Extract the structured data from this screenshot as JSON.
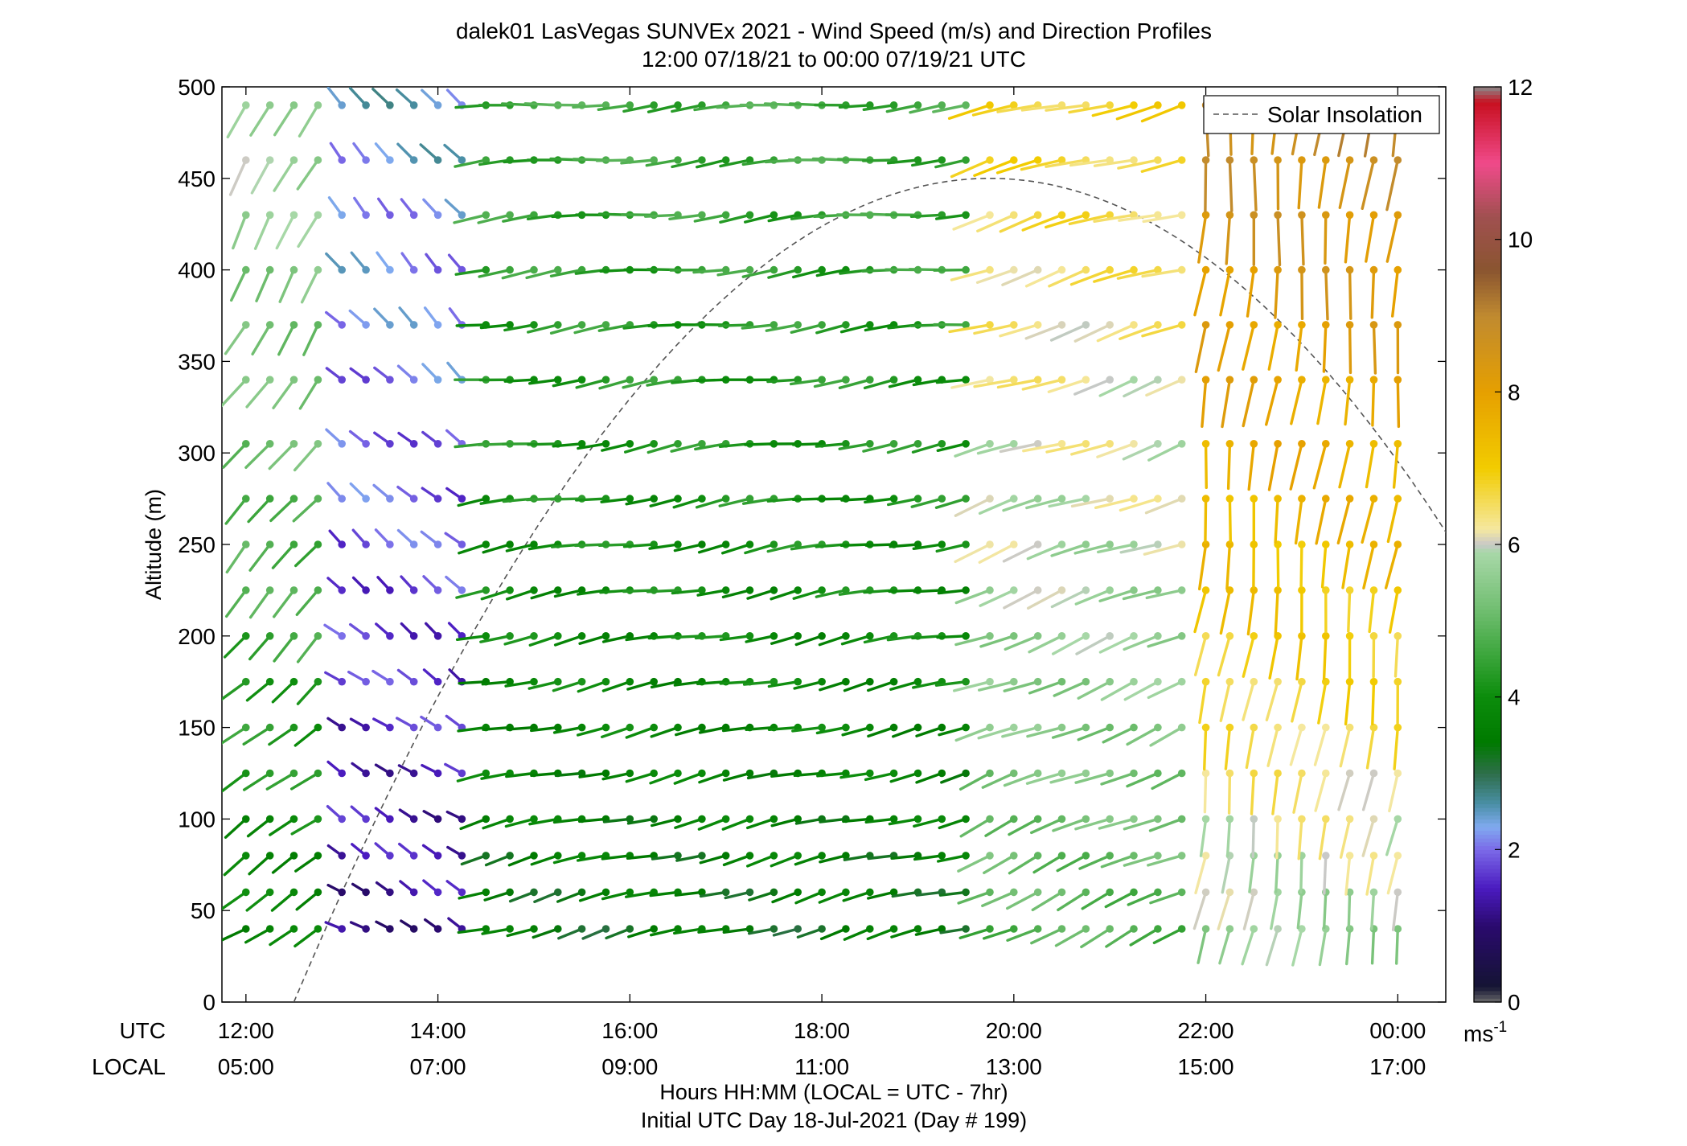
{
  "chart_data": {
    "type": "wind-barb-profile",
    "title_line1": "dalek01 LasVegas SUNVEx 2021 - Wind Speed (m/s) and Direction Profiles",
    "title_line2": "12:00 07/18/21 to 00:00 07/19/21  UTC",
    "ylabel": "Altitude (m)",
    "xlabel_line1": "Hours HH:MM  (LOCAL = UTC - 7hr)",
    "xlabel_line2": "Initial UTC Day 18-Jul-2021 (Day # 199)",
    "row_labels": {
      "utc": "UTC",
      "local": "LOCAL"
    },
    "ylim": [
      0,
      500
    ],
    "yticks": [
      0,
      50,
      100,
      150,
      200,
      250,
      300,
      350,
      400,
      450,
      500
    ],
    "xlim_hours": [
      11.75,
      24.5
    ],
    "xticks": [
      {
        "hour": 12,
        "utc": "12:00",
        "local": "05:00"
      },
      {
        "hour": 14,
        "utc": "14:00",
        "local": "07:00"
      },
      {
        "hour": 16,
        "utc": "16:00",
        "local": "09:00"
      },
      {
        "hour": 18,
        "utc": "18:00",
        "local": "11:00"
      },
      {
        "hour": 20,
        "utc": "20:00",
        "local": "13:00"
      },
      {
        "hour": 22,
        "utc": "22:00",
        "local": "15:00"
      },
      {
        "hour": 24,
        "utc": "00:00",
        "local": "17:00"
      }
    ],
    "colorbar": {
      "min": 0,
      "max": 12,
      "ticks": [
        0,
        2,
        4,
        6,
        8,
        10,
        12
      ],
      "unit_base": "ms",
      "unit_exp": "-1"
    },
    "legend": {
      "label": "Solar Insolation",
      "position": "top-right",
      "style": "dashed"
    },
    "solar_insolation": {
      "start_hour": 12.5,
      "peak_hour": 19.75,
      "peak_altitude": 450,
      "end_hour": 27.0
    },
    "altitudes": [
      40,
      60,
      80,
      100,
      125,
      150,
      175,
      200,
      225,
      250,
      275,
      305,
      340,
      370,
      400,
      430,
      460,
      490
    ],
    "sample_interval_hours": 0.25,
    "profile_segments": [
      {
        "from_hour": 12.0,
        "to_hour": 13.0,
        "speed_low": 3.6,
        "speed_high": 5.8,
        "dir_low": 240,
        "dir_high": 205
      },
      {
        "from_hour": 13.0,
        "to_hour": 14.5,
        "speed_low": 1.2,
        "speed_high": 2.4,
        "dir_low": 300,
        "dir_high": 320
      },
      {
        "from_hour": 14.5,
        "to_hour": 19.75,
        "speed_low": 3.4,
        "speed_high": 4.6,
        "dir_low": 255,
        "dir_high": 265
      },
      {
        "from_hour": 19.75,
        "to_hour": 22.0,
        "speed_low": 4.8,
        "speed_high": 6.8,
        "dir_low": 245,
        "dir_high": 255
      },
      {
        "from_hour": 22.0,
        "to_hour": 24.0,
        "speed_low": 5.6,
        "speed_high": 8.8,
        "dir_low": 190,
        "dir_high": 185
      }
    ]
  },
  "colors": {
    "axis": "#000000",
    "solar": "#555555",
    "colormap": [
      [
        0.0,
        "#6b6b6b"
      ],
      [
        0.2,
        "#141433"
      ],
      [
        1.0,
        "#2a0a6e"
      ],
      [
        1.5,
        "#4b1bc0"
      ],
      [
        2.0,
        "#7b6ae8"
      ],
      [
        2.3,
        "#80aaf0"
      ],
      [
        2.6,
        "#4a8fa6"
      ],
      [
        3.0,
        "#2e6e4a"
      ],
      [
        3.4,
        "#007a00"
      ],
      [
        4.0,
        "#0b8c0b"
      ],
      [
        4.6,
        "#40a840"
      ],
      [
        5.2,
        "#75c075"
      ],
      [
        5.9,
        "#a8d8a8"
      ],
      [
        6.0,
        "#c8c8c8"
      ],
      [
        6.2,
        "#f5e8a0"
      ],
      [
        7.0,
        "#f2cc00"
      ],
      [
        8.0,
        "#e6a000"
      ],
      [
        9.0,
        "#c08a30"
      ],
      [
        9.6,
        "#8a5530"
      ],
      [
        10.3,
        "#a05050"
      ],
      [
        11.0,
        "#f04a8a"
      ],
      [
        11.8,
        "#c81020"
      ],
      [
        12.0,
        "#8a8a8a"
      ]
    ]
  }
}
